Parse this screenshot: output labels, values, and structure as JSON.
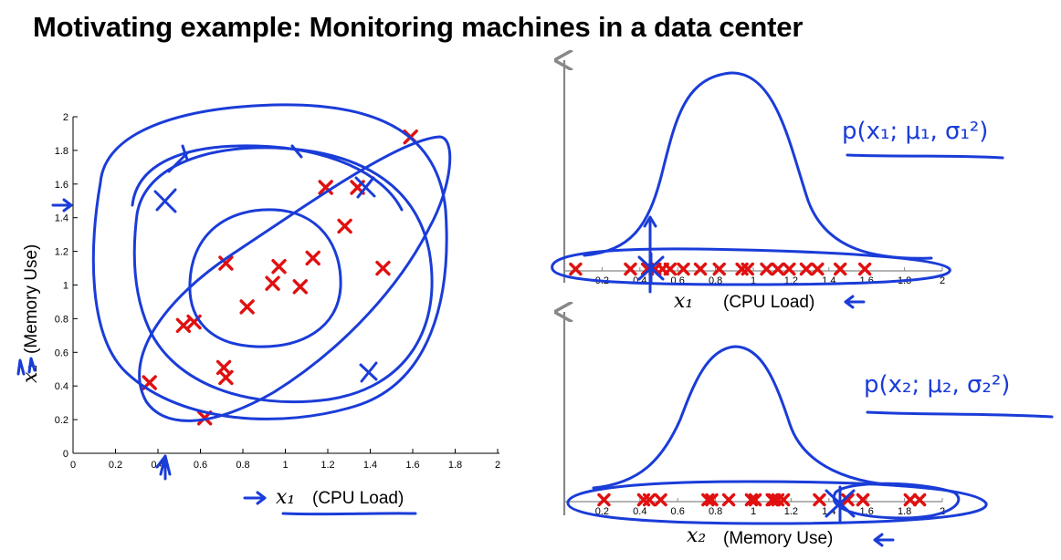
{
  "title": "Motivating example: Monitoring machines in a data center",
  "colors": {
    "marker": "#e01010",
    "ink": "#1a3cd8",
    "axis": "#000000",
    "arrow_axis": "#888888"
  },
  "chart_data": [
    {
      "type": "scatter",
      "xlabel_var": "x₁",
      "xlabel": "(CPU Load)",
      "ylabel_var": "x₂",
      "ylabel": "(Memory Use)",
      "xlim": [
        0,
        2
      ],
      "ylim": [
        0,
        2
      ],
      "xticks": [
        "0",
        "0.2",
        "0.4",
        "0.6",
        "0.8",
        "1",
        "1.2",
        "1.4",
        "1.6",
        "1.8",
        "2"
      ],
      "yticks": [
        "0",
        "0.2",
        "0.4",
        "0.6",
        "0.8",
        "1",
        "1.2",
        "1.4",
        "1.6",
        "1.8",
        "2"
      ],
      "marker": "x",
      "points": [
        {
          "x": 0.36,
          "y": 0.42
        },
        {
          "x": 0.52,
          "y": 0.76
        },
        {
          "x": 0.57,
          "y": 0.78
        },
        {
          "x": 0.62,
          "y": 0.21
        },
        {
          "x": 0.71,
          "y": 0.51
        },
        {
          "x": 0.72,
          "y": 0.45
        },
        {
          "x": 0.72,
          "y": 1.13
        },
        {
          "x": 0.82,
          "y": 0.87
        },
        {
          "x": 0.94,
          "y": 1.01
        },
        {
          "x": 0.97,
          "y": 1.11
        },
        {
          "x": 1.07,
          "y": 0.99
        },
        {
          "x": 1.13,
          "y": 1.16
        },
        {
          "x": 1.19,
          "y": 1.58
        },
        {
          "x": 1.28,
          "y": 1.35
        },
        {
          "x": 1.34,
          "y": 1.58
        },
        {
          "x": 1.46,
          "y": 1.1
        },
        {
          "x": 1.59,
          "y": 1.88
        }
      ]
    },
    {
      "type": "scatter",
      "xlabel_var": "x₁",
      "xlabel": "(CPU Load)",
      "xlim": [
        0,
        2
      ],
      "xticks": [
        "0.2",
        "0.4",
        "0.6",
        "0.8",
        "1",
        "1.2",
        "1.4",
        "1.6",
        "1.8",
        "2"
      ],
      "marker": "x",
      "values": [
        0.06,
        0.35,
        0.44,
        0.48,
        0.52,
        0.56,
        0.63,
        0.72,
        0.82,
        0.94,
        0.97,
        1.07,
        1.13,
        1.19,
        1.28,
        1.34,
        1.46,
        1.59
      ],
      "annotation": "p(x₁; μ₁, σ₁²)"
    },
    {
      "type": "scatter",
      "xlabel_var": "x₂",
      "xlabel": "(Memory Use)",
      "xlim": [
        0,
        2
      ],
      "xticks": [
        "0.2",
        "0.4",
        "0.6",
        "0.8",
        "1",
        "1.2",
        "1.4",
        "1.6",
        "1.8",
        "2"
      ],
      "marker": "x",
      "values": [
        0.21,
        0.42,
        0.45,
        0.51,
        0.76,
        0.78,
        0.87,
        0.99,
        1.01,
        1.1,
        1.11,
        1.13,
        1.16,
        1.35,
        1.5,
        1.58,
        1.58,
        1.83,
        1.88
      ],
      "annotation": "p(x₂; μ₂, σ₂²)"
    }
  ]
}
